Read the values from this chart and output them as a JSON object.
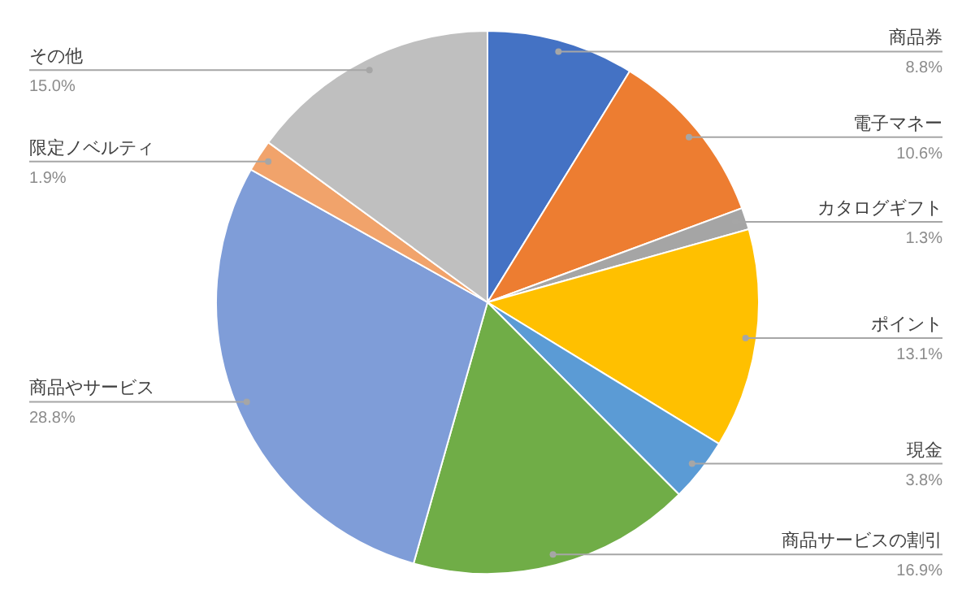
{
  "chart_data": {
    "type": "pie",
    "categories": [
      "商品券",
      "電子マネー",
      "カタログギフト",
      "ポイント",
      "現金",
      "商品サービスの割引",
      "商品やサービス",
      "限定ノベルティ",
      "その他"
    ],
    "values": [
      8.8,
      10.6,
      1.3,
      13.1,
      3.8,
      16.9,
      28.8,
      1.9,
      15.0
    ],
    "colors": [
      "#4472c4",
      "#ed7d31",
      "#a5a5a5",
      "#ffc000",
      "#5b9bd5",
      "#70ad47",
      "#7f9dd8",
      "#f1a36b",
      "#bfbfbf"
    ],
    "value_labels": [
      "8.8%",
      "10.6%",
      "1.3%",
      "13.1%",
      "3.8%",
      "16.9%",
      "28.8%",
      "1.9%",
      "15.0%"
    ]
  }
}
